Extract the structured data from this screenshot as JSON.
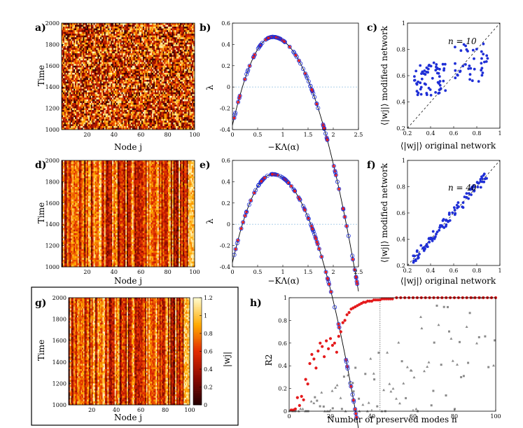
{
  "colors": {
    "heat_low": "#6b0000",
    "heat_mid": "#e22a00",
    "heat_high": "#ffd400",
    "heat_top": "#fff9c8",
    "blue": "#1f2fd6",
    "red": "#e41a1c",
    "gray": "#8a8a8a"
  },
  "panels": {
    "a": {
      "label": "a)",
      "ylabel": "Time",
      "xlabel": "Node j"
    },
    "b": {
      "label": "b)",
      "ylabel": "λ",
      "xlabel": "−KΛ(α)"
    },
    "c": {
      "label": "c)",
      "annotation": "n = 10",
      "ylabel": "⟨|wj|⟩ modified network",
      "xlabel": "⟨|wj|⟩ original network"
    },
    "d": {
      "label": "d)",
      "ylabel": "Time",
      "xlabel": "Node j"
    },
    "e": {
      "label": "e)",
      "ylabel": "λ",
      "xlabel": "−KΛ(α)"
    },
    "f": {
      "label": "f)",
      "annotation": "n = 40",
      "ylabel": "⟨|wj|⟩ modified network",
      "xlabel": "⟨|wj|⟩ original network"
    },
    "g": {
      "label": "g)",
      "ylabel": "Time",
      "xlabel": "Node j",
      "colorbar_label": "|wj|"
    },
    "h": {
      "label": "h)",
      "ylabel": "R2",
      "xlabel": "Number of preserved modes n"
    }
  },
  "chart_data": [
    {
      "panel": "a",
      "type": "heatmap",
      "xlim": [
        1,
        100
      ],
      "ylim": [
        1000,
        2000
      ],
      "xticks": [
        20,
        40,
        60,
        80,
        100
      ],
      "yticks": [
        1000,
        1200,
        1400,
        1600,
        1800,
        2000
      ]
    },
    {
      "panel": "b",
      "type": "scatter",
      "xlim": [
        0,
        2.5
      ],
      "ylim": [
        -0.4,
        0.6
      ],
      "xticks": [
        0,
        0.5,
        1,
        1.5,
        2,
        2.5
      ],
      "yticks": [
        -0.4,
        -0.2,
        0,
        0.2,
        0.4,
        0.6
      ],
      "curve": "lambda = sigma - K*Lambda, peak ≈ 0.47 at -KΛ ≈ 0.8"
    },
    {
      "panel": "c",
      "type": "scatter",
      "xlim": [
        0.2,
        1
      ],
      "ylim": [
        0.2,
        1
      ],
      "xticks": [
        0.2,
        0.4,
        0.6,
        0.8,
        1
      ],
      "yticks": [
        0.2,
        0.4,
        0.6,
        0.8,
        1
      ],
      "diagonal": true
    },
    {
      "panel": "d",
      "type": "heatmap",
      "xlim": [
        1,
        100
      ],
      "ylim": [
        1000,
        2000
      ],
      "xticks": [
        20,
        40,
        60,
        80,
        100
      ],
      "yticks": [
        1000,
        1200,
        1400,
        1600,
        1800,
        2000
      ]
    },
    {
      "panel": "e",
      "type": "scatter",
      "xlim": [
        0,
        2.5
      ],
      "ylim": [
        -0.4,
        0.6
      ],
      "xticks": [
        0,
        0.5,
        1,
        1.5,
        2,
        2.5
      ],
      "yticks": [
        -0.4,
        -0.2,
        0,
        0.2,
        0.4,
        0.6
      ]
    },
    {
      "panel": "f",
      "type": "scatter",
      "xlim": [
        0.2,
        1
      ],
      "ylim": [
        0.2,
        1
      ],
      "xticks": [
        0.2,
        0.4,
        0.6,
        0.8,
        1
      ],
      "yticks": [
        0.2,
        0.4,
        0.6,
        0.8,
        1
      ],
      "diagonal": true
    },
    {
      "panel": "g",
      "type": "heatmap",
      "xlim": [
        1,
        100
      ],
      "ylim": [
        1000,
        2000
      ],
      "xticks": [
        20,
        40,
        60,
        80,
        100
      ],
      "yticks": [
        1000,
        1200,
        1400,
        1600,
        1800,
        2000
      ],
      "colorbar_ticks": [
        0,
        0.2,
        0.4,
        0.6,
        0.8,
        1,
        1.2
      ]
    },
    {
      "panel": "h",
      "type": "scatter",
      "xlim": [
        0,
        100
      ],
      "ylim": [
        0,
        1
      ],
      "xticks": [
        0,
        20,
        40,
        60,
        80,
        100
      ],
      "yticks": [
        0,
        0.2,
        0.4,
        0.6,
        0.8,
        1
      ],
      "vline_x": 44,
      "series": [
        {
          "color": "red",
          "x": [
            1,
            2,
            3,
            4,
            5,
            6,
            7,
            8,
            9,
            10,
            11,
            12,
            13,
            14,
            15,
            16,
            17,
            18,
            19,
            20,
            21,
            22,
            23,
            24,
            25,
            26,
            27,
            28,
            29,
            30,
            31,
            32,
            33,
            34,
            35,
            36,
            37,
            38,
            39,
            40,
            41,
            42,
            43,
            44,
            45,
            46,
            47,
            48,
            49,
            50,
            52,
            54,
            56,
            58,
            60,
            62,
            64,
            66,
            68,
            70,
            72,
            74,
            76,
            78,
            80,
            82,
            84,
            86,
            88,
            90,
            92,
            94,
            96,
            98,
            100
          ],
          "y": [
            0.01,
            0.01,
            0.02,
            0.12,
            0.05,
            0.13,
            0.1,
            0.28,
            0.24,
            0.42,
            0.5,
            0.46,
            0.38,
            0.53,
            0.6,
            0.57,
            0.48,
            0.62,
            0.55,
            0.64,
            0.58,
            0.6,
            0.52,
            0.66,
            0.7,
            0.78,
            0.8,
            0.85,
            0.87,
            0.9,
            0.91,
            0.92,
            0.93,
            0.94,
            0.95,
            0.96,
            0.96,
            0.97,
            0.97,
            0.97,
            0.98,
            0.98,
            0.98,
            0.98,
            0.99,
            0.99,
            0.99,
            0.99,
            0.99,
            0.99,
            1,
            1,
            1,
            1,
            1,
            1,
            1,
            1,
            1,
            1,
            1,
            1,
            1,
            1,
            1,
            1,
            1,
            1,
            1,
            1,
            1,
            1,
            1,
            1,
            1
          ]
        }
      ]
    }
  ]
}
